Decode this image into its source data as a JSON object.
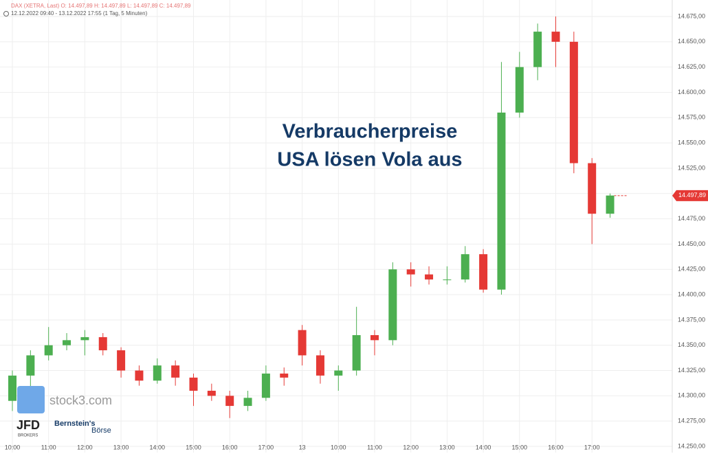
{
  "chart_data": {
    "type": "candlestick",
    "header": "DAX (XETRA, Last)  O: 14.497,89  H: 14.497,89  L: 14.497,89  C: 14.497,89",
    "range_text": "12.12.2022 09:40 - 13.12.2022 17:55   (1 Tag, 5 Minuten)",
    "annotation": [
      "Verbraucherpreise",
      "USA lösen Vola aus"
    ],
    "watermarks": {
      "site": "stock3.com",
      "broker": "JFD",
      "broker_sub": "BROKERS",
      "partner": "Bernstein's",
      "partner_sub": "Börse"
    },
    "categories": [
      "10:00",
      null,
      "11:00",
      null,
      "12:00",
      null,
      "13:00",
      null,
      "14:00",
      null,
      "15:00",
      null,
      "16:00",
      null,
      "17:00",
      null,
      "13",
      null,
      "10:00",
      null,
      "11:00",
      null,
      "12:00",
      null,
      "13:00",
      null,
      "14:00",
      null,
      "15:00",
      null,
      "16:00",
      null,
      "17:00",
      null
    ],
    "open": [
      14295,
      14320,
      14340,
      14350,
      14355,
      14358,
      14345,
      14325,
      14315,
      14330,
      14318,
      14305,
      14300,
      14290,
      14298,
      14322,
      14365,
      14340,
      14320,
      14325,
      14360,
      14355,
      14425,
      14420,
      14415,
      14415,
      14440,
      14405,
      14580,
      14625,
      14660,
      14650,
      14530,
      14480
    ],
    "high": [
      14325,
      14345,
      14368,
      14362,
      14365,
      14362,
      14348,
      14330,
      14337,
      14335,
      14322,
      14312,
      14305,
      14305,
      14330,
      14328,
      14370,
      14345,
      14330,
      14388,
      14365,
      14432,
      14432,
      14428,
      14428,
      14448,
      14445,
      14630,
      14640,
      14668,
      14675,
      14660,
      14535,
      14500
    ],
    "low": [
      14285,
      14305,
      14335,
      14345,
      14340,
      14340,
      14318,
      14310,
      14312,
      14310,
      14290,
      14295,
      14278,
      14285,
      14295,
      14310,
      14330,
      14312,
      14305,
      14320,
      14340,
      14350,
      14408,
      14410,
      14410,
      14412,
      14402,
      14400,
      14575,
      14612,
      14625,
      14520,
      14450,
      14476
    ],
    "close": [
      14320,
      14340,
      14350,
      14355,
      14358,
      14345,
      14325,
      14315,
      14330,
      14318,
      14305,
      14300,
      14290,
      14298,
      14322,
      14318,
      14340,
      14320,
      14325,
      14360,
      14355,
      14425,
      14420,
      14415,
      14415,
      14440,
      14405,
      14580,
      14625,
      14660,
      14650,
      14530,
      14480,
      14498
    ],
    "up_color": "#4caf50",
    "down_color": "#e53935",
    "ylim": [
      14250,
      14675
    ],
    "yticks": [
      {
        "value": 14250,
        "label": "14.250,00"
      },
      {
        "value": 14275,
        "label": "14.275,00"
      },
      {
        "value": 14300,
        "label": "14.300,00"
      },
      {
        "value": 14325,
        "label": "14.325,00"
      },
      {
        "value": 14350,
        "label": "14.350,00"
      },
      {
        "value": 14375,
        "label": "14.375,00"
      },
      {
        "value": 14400,
        "label": "14.400,00"
      },
      {
        "value": 14425,
        "label": "14.425,00"
      },
      {
        "value": 14450,
        "label": "14.450,00"
      },
      {
        "value": 14475,
        "label": "14.475,00"
      },
      {
        "value": 14500,
        "label": "14.500,00"
      },
      {
        "value": 14525,
        "label": "14.525,00"
      },
      {
        "value": 14550,
        "label": "14.550,00"
      },
      {
        "value": 14575,
        "label": "14.575,00"
      },
      {
        "value": 14600,
        "label": "14.600,00"
      },
      {
        "value": 14625,
        "label": "14.625,00"
      },
      {
        "value": 14650,
        "label": "14.650,00"
      },
      {
        "value": 14675,
        "label": "14.675,00"
      }
    ],
    "last_price": {
      "value": 14497.89,
      "label": "14.497,89"
    },
    "grid": true
  }
}
